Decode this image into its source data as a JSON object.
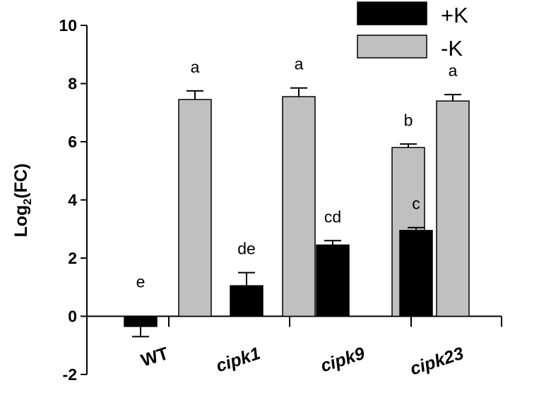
{
  "chart_data": {
    "type": "bar",
    "title": "",
    "xlabel": "",
    "ylabel": "Log2(FC)",
    "ylabel_main": "Log",
    "ylabel_sub": "2",
    "ylabel_tail": "(FC)",
    "ylim": [
      -2,
      10
    ],
    "yticks": [
      -2,
      0,
      2,
      4,
      6,
      8,
      10
    ],
    "grid": false,
    "legend_position": "top-right",
    "categories": [
      "WT",
      "cipk1",
      "cipk9",
      "cipk23"
    ],
    "category_italic": [
      false,
      true,
      true,
      true
    ],
    "series": [
      {
        "name": "+K",
        "color": "#000000",
        "values": [
          -0.35,
          1.05,
          2.45,
          2.95
        ],
        "errors": [
          0.35,
          0.45,
          0.15,
          0.1
        ],
        "labels": [
          "e",
          "de",
          "cd",
          "c"
        ]
      },
      {
        "name": "-K",
        "color": "#c0c0c0",
        "values": [
          7.45,
          7.55,
          5.8,
          7.4
        ],
        "errors": [
          0.3,
          0.3,
          0.12,
          0.22
        ],
        "labels": [
          "a",
          "a",
          "b",
          "a"
        ]
      }
    ]
  }
}
